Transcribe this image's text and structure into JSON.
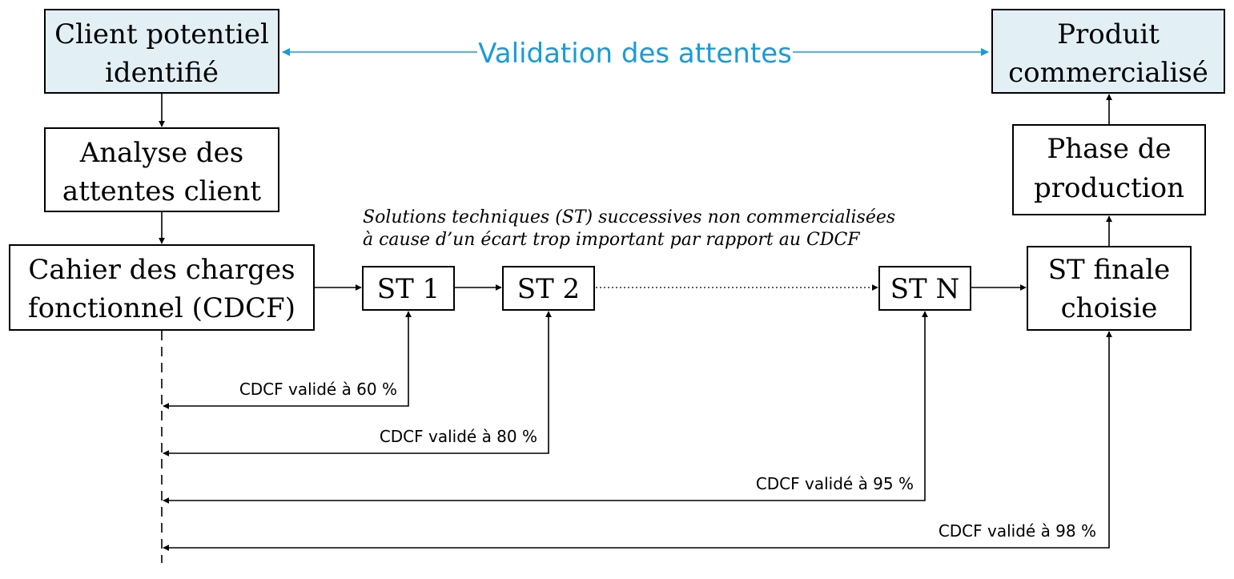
{
  "colors": {
    "highlight_fill": "#e2f0f6",
    "validation_blue": "#1a9bd7",
    "stroke": "#000000"
  },
  "boxes": {
    "client": [
      "Client potentiel",
      "identifié"
    ],
    "analyse": [
      "Analyse des",
      "attentes client"
    ],
    "cdcf": [
      "Cahier des charges",
      "fonctionnel (CDCF)"
    ],
    "st1": "ST 1",
    "st2": "ST 2",
    "stn": "ST N",
    "st_final": [
      "ST finale",
      "choisie"
    ],
    "production": [
      "Phase de",
      "production"
    ],
    "produit": [
      "Produit",
      "commercialisé"
    ]
  },
  "validation_label": "Validation des attentes",
  "note": [
    "Solutions techniques (ST) successives non commercialisées",
    "à cause d’un écart trop important par rapport au CDCF"
  ],
  "feedback": [
    "CDCF validé à 60 %",
    "CDCF validé à 80 %",
    "CDCF validé à 95 %",
    "CDCF validé à 98 %"
  ],
  "icons": {
    "arrow": "arrow-icon"
  }
}
